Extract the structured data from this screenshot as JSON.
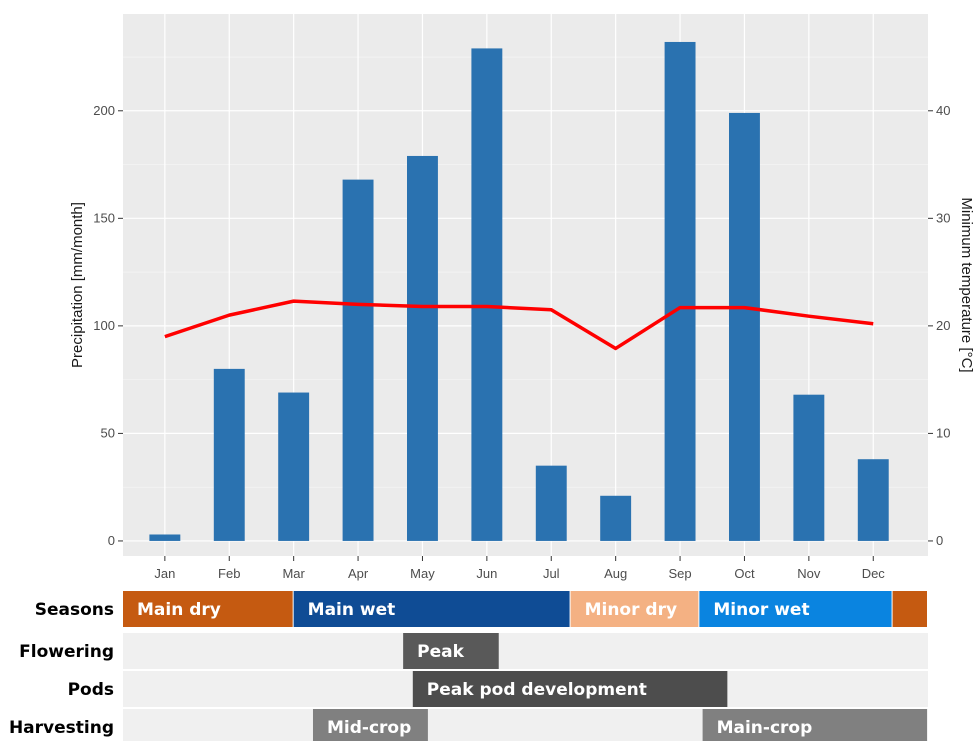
{
  "chart_data": {
    "type": "bar",
    "categories": [
      "Jan",
      "Feb",
      "Mar",
      "Apr",
      "May",
      "Jun",
      "Jul",
      "Aug",
      "Sep",
      "Oct",
      "Nov",
      "Dec"
    ],
    "series": [
      {
        "axis": "left",
        "kind": "bar",
        "color": "#2a72b0",
        "values": [
          3,
          80,
          69,
          168,
          179,
          229,
          35,
          21,
          232,
          199,
          68,
          38
        ]
      },
      {
        "axis": "right",
        "kind": "line",
        "color": "#ff0000",
        "values": [
          19.0,
          21.0,
          22.3,
          22.0,
          21.8,
          21.8,
          21.5,
          17.9,
          21.7,
          21.7,
          20.9,
          20.2
        ]
      }
    ],
    "ylabel": "Precipitation [mm/month]",
    "y2label": "Minimum temperature [°C]",
    "ylim": [
      -7,
      245
    ],
    "y2lim": [
      -1.4,
      49
    ],
    "yticks": [
      0,
      50,
      100,
      150,
      200
    ],
    "y2ticks": [
      0,
      10,
      20,
      30,
      40
    ],
    "grid": true,
    "panel_color": "#ebebeb"
  },
  "phenology": {
    "rows": [
      {
        "label": "Seasons",
        "bands": [
          {
            "label": "Main dry",
            "start": 0.0,
            "end": 2.65,
            "color": "#c55a11"
          },
          {
            "label": "Main wet",
            "start": 2.65,
            "end": 6.95,
            "color": "#0f4c95"
          },
          {
            "label": "Minor dry",
            "start": 6.95,
            "end": 8.95,
            "color": "#f4b183"
          },
          {
            "label": "Minor wet",
            "start": 8.95,
            "end": 11.95,
            "color": "#0a84e0"
          },
          {
            "label": "",
            "start": 11.95,
            "end": 12.5,
            "color": "#c55a11"
          }
        ]
      },
      {
        "label": "Flowering",
        "bands": [
          {
            "label": "Peak",
            "start": 4.35,
            "end": 5.85,
            "color": "#595959"
          }
        ]
      },
      {
        "label": "Pods",
        "bands": [
          {
            "label": "Peak pod development",
            "start": 4.5,
            "end": 9.4,
            "color": "#4d4d4d"
          }
        ]
      },
      {
        "label": "Harvesting",
        "bands": [
          {
            "label": "Mid-crop",
            "start": 2.95,
            "end": 4.75,
            "color": "#808080"
          },
          {
            "label": "Main-crop",
            "start": 9.0,
            "end": 12.5,
            "color": "#808080"
          }
        ]
      }
    ]
  }
}
